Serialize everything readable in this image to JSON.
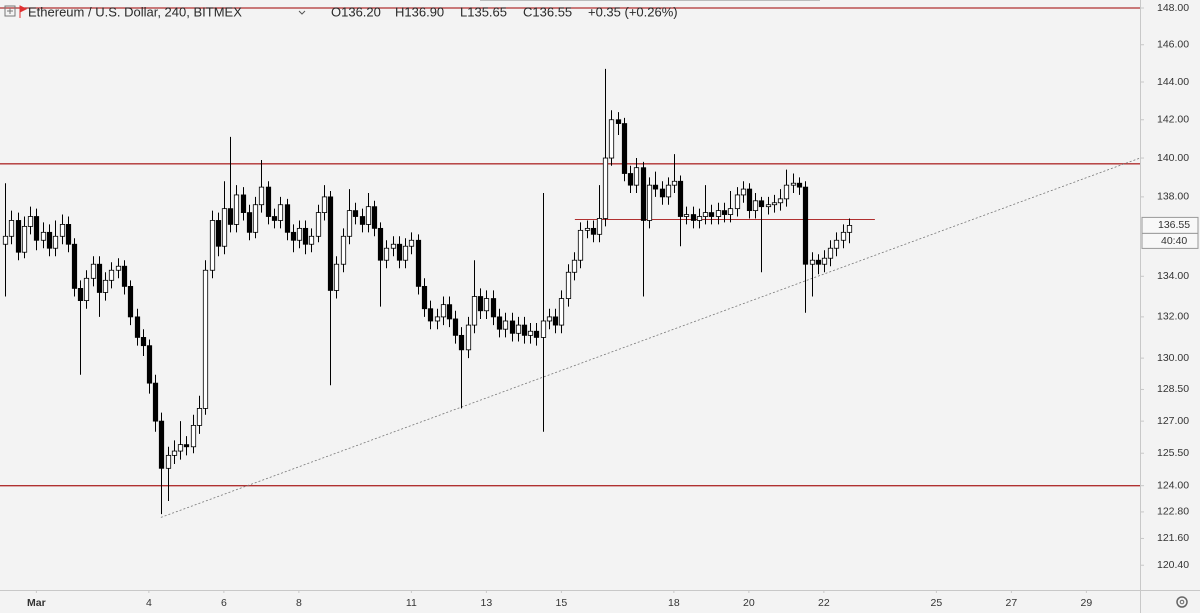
{
  "chart_data": {
    "type": "candlestick",
    "title": "Ethereum / U.S. Dollar, 240, BITMEX",
    "legend_open": "O136.20",
    "legend_high": "H136.90",
    "legend_low": "L135.65",
    "legend_close": "C136.55",
    "legend_change": "+0.35 (+0.26%)",
    "countdown": "40:40",
    "log_scale": true,
    "grid": false,
    "up_color": "#ffffff",
    "down_color": "#000000",
    "line_color": "#b03030",
    "x": [
      0.17,
      0.33,
      0.5,
      0.67,
      0.83,
      1,
      1.17,
      1.33,
      1.5,
      1.67,
      1.83,
      2,
      2.17,
      2.33,
      2.5,
      2.67,
      2.83,
      3,
      3.17,
      3.33,
      3.5,
      3.67,
      3.83,
      4,
      4.17,
      4.33,
      4.5,
      4.67,
      4.83,
      5,
      5.17,
      5.33,
      5.5,
      5.67,
      5.83,
      6,
      6.17,
      6.33,
      6.5,
      6.67,
      6.83,
      7,
      7.17,
      7.33,
      7.5,
      7.67,
      7.83,
      8,
      8.17,
      8.33,
      8.5,
      8.67,
      8.83,
      9,
      9.17,
      9.33,
      9.5,
      9.67,
      9.83,
      10,
      10.17,
      10.33,
      10.5,
      10.67,
      10.83,
      11,
      11.17,
      11.33,
      11.5,
      11.67,
      11.83,
      12,
      12.17,
      12.33,
      12.5,
      12.67,
      12.83,
      13,
      13.17,
      13.33,
      13.5,
      13.67,
      13.83,
      14,
      14.17,
      14.33,
      14.5,
      14.67,
      14.83,
      15,
      15.17,
      15.33,
      15.5,
      15.67,
      15.83,
      16,
      16.17,
      16.33,
      16.5,
      16.67,
      16.83,
      17,
      17.17,
      17.33,
      17.5,
      17.67,
      17.83,
      18,
      18.17,
      18.33,
      18.5,
      18.67,
      18.83,
      19,
      19.17,
      19.33,
      19.5,
      19.67,
      19.83,
      20,
      20.17,
      20.33,
      20.5,
      20.67,
      20.83,
      21,
      21.17,
      21.33,
      21.5,
      21.67,
      21.83,
      22,
      22.17,
      22.33,
      22.5,
      22.67
    ],
    "open": [
      135.6,
      136.0,
      136.8,
      135.2,
      136.5,
      137.0,
      135.8,
      136.2,
      135.4,
      136.0,
      136.6,
      135.6,
      133.4,
      132.8,
      133.9,
      134.6,
      133.2,
      133.8,
      134.3,
      134.5,
      133.5,
      132.0,
      131.0,
      130.6,
      128.8,
      127.0,
      124.8,
      125.4,
      125.6,
      125.9,
      125.8,
      126.8,
      127.6,
      134.3,
      136.8,
      135.5,
      137.4,
      136.6,
      138.1,
      137.2,
      136.2,
      137.6,
      138.5,
      137.0,
      136.8,
      137.6,
      136.2,
      135.8,
      136.4,
      135.6,
      136.0,
      137.2,
      138.0,
      133.3,
      134.6,
      136.0,
      137.3,
      137.0,
      136.6,
      137.5,
      136.4,
      134.8,
      135.4,
      135.6,
      134.8,
      135.5,
      135.8,
      133.5,
      132.4,
      131.8,
      132.0,
      132.6,
      131.9,
      131.1,
      130.4,
      131.6,
      133.0,
      132.3,
      132.9,
      132.0,
      131.4,
      131.8,
      131.2,
      131.6,
      131.1,
      131.3,
      131.0,
      131.8,
      132.0,
      131.6,
      132.9,
      134.2,
      134.8,
      136.3,
      136.4,
      136.1,
      136.9,
      140.0,
      142.0,
      141.8,
      139.2,
      138.6,
      139.5,
      136.8,
      138.6,
      138.4,
      138.0,
      138.6,
      138.8,
      137.0,
      137.1,
      136.8,
      137.0,
      137.2,
      137.0,
      137.3,
      137.1,
      137.4,
      138.1,
      138.4,
      137.3,
      137.8,
      137.5,
      137.6,
      137.7,
      137.9,
      138.6,
      138.7,
      138.5,
      134.6,
      134.8,
      134.6,
      134.9,
      135.4,
      135.8,
      136.2
    ],
    "high": [
      138.7,
      137.3,
      137.2,
      137.0,
      137.5,
      137.4,
      136.7,
      136.6,
      136.8,
      137.1,
      137.0,
      135.9,
      133.8,
      134.3,
      135.0,
      135.0,
      134.2,
      134.7,
      134.9,
      134.8,
      133.8,
      132.4,
      131.4,
      130.9,
      129.2,
      127.4,
      125.8,
      126.1,
      127.0,
      126.3,
      127.3,
      128.2,
      134.8,
      137.3,
      137.2,
      138.8,
      141.1,
      138.6,
      138.5,
      137.6,
      138.0,
      139.9,
      138.8,
      137.4,
      138.0,
      137.9,
      136.6,
      136.8,
      136.8,
      136.4,
      137.6,
      138.6,
      138.3,
      135.0,
      136.4,
      138.4,
      137.7,
      137.4,
      138.2,
      137.8,
      136.7,
      135.8,
      136.0,
      136.0,
      135.9,
      136.2,
      136.1,
      133.9,
      132.8,
      132.4,
      133.0,
      133.0,
      132.3,
      131.5,
      132.0,
      134.8,
      133.4,
      133.3,
      133.3,
      132.4,
      132.2,
      132.2,
      132.0,
      132.0,
      131.7,
      131.7,
      138.2,
      132.4,
      132.4,
      133.3,
      134.6,
      135.2,
      136.7,
      136.8,
      136.8,
      138.6,
      144.7,
      142.5,
      142.4,
      142.1,
      139.6,
      140.0,
      139.8,
      139.0,
      139.3,
      138.8,
      139.0,
      140.2,
      139.1,
      137.5,
      137.5,
      137.4,
      138.6,
      137.6,
      137.7,
      137.7,
      138.3,
      138.5,
      138.8,
      138.7,
      138.2,
      138.0,
      138.0,
      138.1,
      138.4,
      139.4,
      139.2,
      139.0,
      138.8,
      135.2,
      135.1,
      135.3,
      135.8,
      136.2,
      136.6,
      136.9
    ],
    "low": [
      133.0,
      135.6,
      134.8,
      134.9,
      136.1,
      135.3,
      135.4,
      135.0,
      135.0,
      135.6,
      135.2,
      133.0,
      129.2,
      132.4,
      133.5,
      132.0,
      132.8,
      133.4,
      133.9,
      133.1,
      131.6,
      130.6,
      130.1,
      128.3,
      126.5,
      122.7,
      123.3,
      125.0,
      125.2,
      125.4,
      125.5,
      126.4,
      127.3,
      133.9,
      135.0,
      135.1,
      136.2,
      136.2,
      136.8,
      135.8,
      135.9,
      137.2,
      136.6,
      136.4,
      136.4,
      135.8,
      135.2,
      135.4,
      135.1,
      135.2,
      135.7,
      136.8,
      128.7,
      132.9,
      134.2,
      135.6,
      136.6,
      136.2,
      136.2,
      136.0,
      132.5,
      134.4,
      135.0,
      134.4,
      134.4,
      135.1,
      133.1,
      132.0,
      131.4,
      131.4,
      131.6,
      131.5,
      130.7,
      127.6,
      130.0,
      131.2,
      131.9,
      131.9,
      131.6,
      131.0,
      131.0,
      130.8,
      130.8,
      130.7,
      130.7,
      130.6,
      126.5,
      131.4,
      131.2,
      131.2,
      132.5,
      133.8,
      134.4,
      135.9,
      135.7,
      135.7,
      136.5,
      139.6,
      141.2,
      138.8,
      138.2,
      138.2,
      133.0,
      136.4,
      138.0,
      137.6,
      137.6,
      138.2,
      135.5,
      136.6,
      136.4,
      136.4,
      136.6,
      136.6,
      136.6,
      136.7,
      136.7,
      137.0,
      137.7,
      136.9,
      136.9,
      134.2,
      137.1,
      137.2,
      137.3,
      137.5,
      138.2,
      138.1,
      132.2,
      133.0,
      134.1,
      134.2,
      134.5,
      135.0,
      135.4,
      135.65
    ],
    "close": [
      136.0,
      136.8,
      135.2,
      136.5,
      137.0,
      135.8,
      136.2,
      135.4,
      136.0,
      136.6,
      135.6,
      133.4,
      132.8,
      133.9,
      134.6,
      133.2,
      133.8,
      134.3,
      134.5,
      133.5,
      132.0,
      131.0,
      130.6,
      128.8,
      127.0,
      124.8,
      125.4,
      125.6,
      125.9,
      125.8,
      126.8,
      127.6,
      134.3,
      136.8,
      135.5,
      137.4,
      136.6,
      138.1,
      137.2,
      136.2,
      137.6,
      138.5,
      137.0,
      136.8,
      137.6,
      136.2,
      135.8,
      136.4,
      135.6,
      136.0,
      137.2,
      138.0,
      133.3,
      134.6,
      136.0,
      137.3,
      137.0,
      136.6,
      137.5,
      136.4,
      134.8,
      135.4,
      135.6,
      134.8,
      135.5,
      135.8,
      133.5,
      132.4,
      131.8,
      132.0,
      132.6,
      131.9,
      131.1,
      130.4,
      131.6,
      133.0,
      132.3,
      132.9,
      132.0,
      131.4,
      131.8,
      131.2,
      131.6,
      131.1,
      131.3,
      131.0,
      131.8,
      132.0,
      131.6,
      132.9,
      134.2,
      134.8,
      136.3,
      136.4,
      136.1,
      136.9,
      140.0,
      142.0,
      141.8,
      139.2,
      138.6,
      139.5,
      136.8,
      138.6,
      138.4,
      138.0,
      138.6,
      138.8,
      137.0,
      137.1,
      136.8,
      137.0,
      137.2,
      137.0,
      137.3,
      137.1,
      137.4,
      138.1,
      138.4,
      137.3,
      137.8,
      137.5,
      137.6,
      137.7,
      137.9,
      138.6,
      138.7,
      138.5,
      134.6,
      134.8,
      134.6,
      134.9,
      135.4,
      135.8,
      136.2,
      136.55
    ],
    "hlines": [
      148.0,
      139.7,
      124.0
    ],
    "segment": {
      "price": 136.85,
      "x": [
        15.36,
        23.36
      ]
    },
    "trendline": {
      "x": [
        4.32,
        30.43
      ],
      "y": [
        122.55,
        140.0
      ]
    },
    "xlim": [
      0.03,
      30.43
    ],
    "xticks": [
      {
        "value": 1,
        "label": "Mar"
      },
      4,
      6,
      8,
      11,
      13,
      15,
      18,
      20,
      22,
      25,
      27,
      29
    ],
    "ylim": [
      119.3,
      148.44
    ],
    "yticks": [
      {
        "value": 148,
        "label": "148.00"
      },
      {
        "value": 146,
        "label": "146.00"
      },
      {
        "value": 144,
        "label": "144.00"
      },
      {
        "value": 142,
        "label": "142.00"
      },
      {
        "value": 140,
        "label": "140.00"
      },
      {
        "value": 138,
        "label": "138.00"
      },
      {
        "value": 134,
        "label": "134.00"
      },
      {
        "value": 132,
        "label": "132.00"
      },
      {
        "value": 130,
        "label": "130.00"
      },
      {
        "value": 128.5,
        "label": "128.50"
      },
      {
        "value": 127,
        "label": "127.00"
      },
      {
        "value": 125.5,
        "label": "125.50"
      },
      {
        "value": 124,
        "label": "124.00"
      },
      {
        "value": 122.8,
        "label": "122.80"
      },
      {
        "value": 121.6,
        "label": "121.60"
      },
      {
        "value": 120.4,
        "label": "120.40"
      }
    ]
  }
}
